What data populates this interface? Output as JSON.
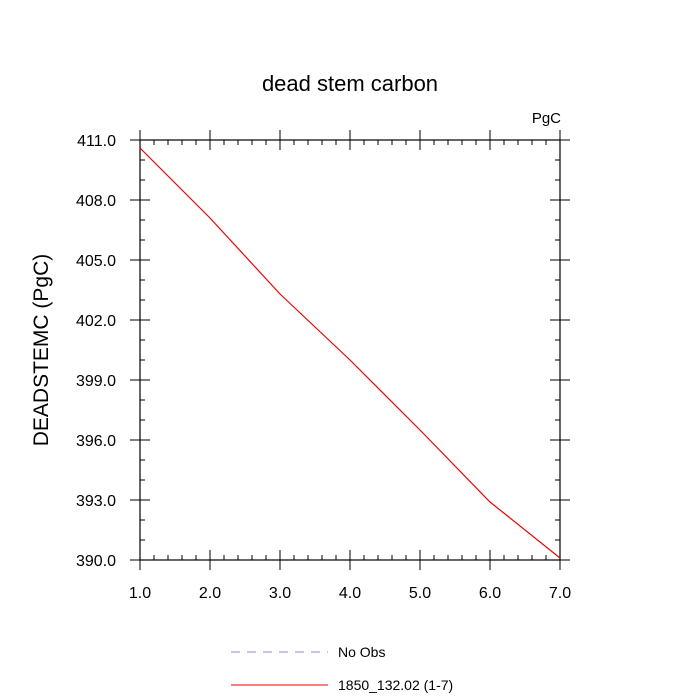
{
  "chart_data": {
    "type": "line",
    "title": "dead stem carbon",
    "units_label": "PgC",
    "xlabel": "",
    "ylabel": "DEADSTEMC  (PgC)",
    "xlim": [
      1.0,
      7.0
    ],
    "ylim": [
      390.0,
      411.0
    ],
    "x_ticks": [
      1.0,
      2.0,
      3.0,
      4.0,
      5.0,
      6.0,
      7.0
    ],
    "x_tick_labels": [
      "1.0",
      "2.0",
      "3.0",
      "4.0",
      "5.0",
      "6.0",
      "7.0"
    ],
    "y_ticks": [
      390.0,
      393.0,
      396.0,
      399.0,
      402.0,
      405.0,
      408.0,
      411.0
    ],
    "y_tick_labels": [
      "390.0",
      "393.0",
      "396.0",
      "399.0",
      "402.0",
      "405.0",
      "408.0",
      "411.0"
    ],
    "grid": false,
    "legend_position": "bottom",
    "series": [
      {
        "name": "No Obs",
        "color": "#8888ee",
        "dash": "dashed",
        "x": [],
        "y": []
      },
      {
        "name": "1850_132.02 (1-7)",
        "color": "#ee0000",
        "dash": "solid",
        "x": [
          1.0,
          2.0,
          3.0,
          4.0,
          5.0,
          6.0,
          7.0
        ],
        "y": [
          410.6,
          407.1,
          403.3,
          400.0,
          396.5,
          392.9,
          390.1
        ]
      }
    ]
  }
}
